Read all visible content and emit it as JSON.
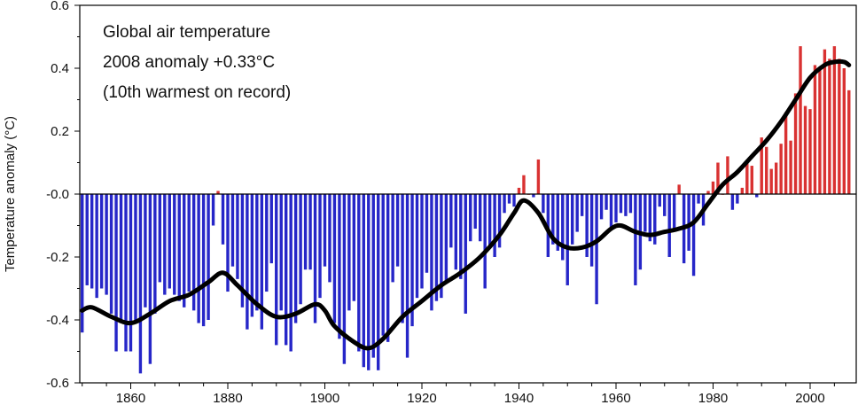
{
  "chart_data": {
    "type": "bar",
    "ylabel": "Temperature anomaly (°C)",
    "annotations": [
      "Global air temperature",
      "2008 anomaly +0.33°C",
      "(10th warmest on record)"
    ],
    "xlim": [
      1849.5,
      2009.5
    ],
    "ylim": [
      -0.6,
      0.6
    ],
    "x_ticks": [
      1860,
      1880,
      1900,
      1920,
      1940,
      1960,
      1980,
      2000
    ],
    "y_ticks": [
      0.6,
      0.4,
      0.2,
      0.0,
      -0.2,
      -0.4,
      -0.6
    ],
    "y_tick_labels": [
      "0.6",
      "0.4",
      "0.2",
      "-0.0",
      "-0.2",
      "-0.4",
      "-0.6"
    ],
    "grid": false,
    "colors": {
      "positive": "#d93232",
      "negative": "#2626c8",
      "smooth": "#000000"
    },
    "x": [
      1850,
      1851,
      1852,
      1853,
      1854,
      1855,
      1856,
      1857,
      1858,
      1859,
      1860,
      1861,
      1862,
      1863,
      1864,
      1865,
      1866,
      1867,
      1868,
      1869,
      1870,
      1871,
      1872,
      1873,
      1874,
      1875,
      1876,
      1877,
      1878,
      1879,
      1880,
      1881,
      1882,
      1883,
      1884,
      1885,
      1886,
      1887,
      1888,
      1889,
      1890,
      1891,
      1892,
      1893,
      1894,
      1895,
      1896,
      1897,
      1898,
      1899,
      1900,
      1901,
      1902,
      1903,
      1904,
      1905,
      1906,
      1907,
      1908,
      1909,
      1910,
      1911,
      1912,
      1913,
      1914,
      1915,
      1916,
      1917,
      1918,
      1919,
      1920,
      1921,
      1922,
      1923,
      1924,
      1925,
      1926,
      1927,
      1928,
      1929,
      1930,
      1931,
      1932,
      1933,
      1934,
      1935,
      1936,
      1937,
      1938,
      1939,
      1940,
      1941,
      1942,
      1943,
      1944,
      1945,
      1946,
      1947,
      1948,
      1949,
      1950,
      1951,
      1952,
      1953,
      1954,
      1955,
      1956,
      1957,
      1958,
      1959,
      1960,
      1961,
      1962,
      1963,
      1964,
      1965,
      1966,
      1967,
      1968,
      1969,
      1970,
      1971,
      1972,
      1973,
      1974,
      1975,
      1976,
      1977,
      1978,
      1979,
      1980,
      1981,
      1982,
      1983,
      1984,
      1985,
      1986,
      1987,
      1988,
      1989,
      1990,
      1991,
      1992,
      1993,
      1994,
      1995,
      1996,
      1997,
      1998,
      1999,
      2000,
      2001,
      2002,
      2003,
      2004,
      2005,
      2006,
      2007,
      2008
    ],
    "values": [
      -0.44,
      -0.29,
      -0.3,
      -0.33,
      -0.3,
      -0.32,
      -0.38,
      -0.5,
      -0.41,
      -0.5,
      -0.5,
      -0.41,
      -0.57,
      -0.36,
      -0.54,
      -0.38,
      -0.28,
      -0.32,
      -0.3,
      -0.32,
      -0.34,
      -0.36,
      -0.31,
      -0.37,
      -0.41,
      -0.42,
      -0.4,
      -0.1,
      0.01,
      -0.16,
      -0.31,
      -0.23,
      -0.27,
      -0.36,
      -0.43,
      -0.39,
      -0.37,
      -0.43,
      -0.31,
      -0.22,
      -0.48,
      -0.37,
      -0.48,
      -0.5,
      -0.41,
      -0.35,
      -0.24,
      -0.24,
      -0.41,
      -0.33,
      -0.23,
      -0.28,
      -0.41,
      -0.46,
      -0.54,
      -0.37,
      -0.34,
      -0.5,
      -0.55,
      -0.56,
      -0.52,
      -0.56,
      -0.45,
      -0.47,
      -0.28,
      -0.23,
      -0.41,
      -0.52,
      -0.42,
      -0.33,
      -0.3,
      -0.25,
      -0.37,
      -0.34,
      -0.33,
      -0.28,
      -0.17,
      -0.24,
      -0.27,
      -0.38,
      -0.15,
      -0.11,
      -0.15,
      -0.3,
      -0.17,
      -0.2,
      -0.17,
      -0.06,
      -0.03,
      -0.04,
      0.02,
      0.06,
      0.0,
      -0.01,
      0.11,
      -0.06,
      -0.2,
      -0.16,
      -0.18,
      -0.21,
      -0.29,
      -0.16,
      -0.12,
      -0.07,
      -0.2,
      -0.23,
      -0.35,
      -0.08,
      -0.05,
      -0.11,
      -0.09,
      -0.06,
      -0.07,
      -0.06,
      -0.29,
      -0.24,
      -0.12,
      -0.15,
      -0.16,
      -0.04,
      -0.07,
      -0.2,
      -0.11,
      0.03,
      -0.22,
      -0.18,
      -0.26,
      -0.03,
      -0.1,
      0.01,
      0.04,
      0.1,
      0.0,
      0.12,
      -0.05,
      -0.03,
      0.02,
      0.1,
      0.09,
      -0.01,
      0.18,
      0.15,
      0.08,
      0.1,
      0.16,
      0.26,
      0.17,
      0.32,
      0.47,
      0.28,
      0.27,
      0.41,
      0.4,
      0.46,
      0.43,
      0.47,
      0.43,
      0.4,
      0.33
    ],
    "smooth_x": [
      1850,
      1852,
      1856,
      1860,
      1864,
      1868,
      1872,
      1876,
      1879,
      1882,
      1886,
      1890,
      1894,
      1898,
      1900,
      1902,
      1906,
      1909,
      1912,
      1916,
      1920,
      1924,
      1928,
      1932,
      1936,
      1939,
      1941,
      1944,
      1947,
      1950,
      1953,
      1956,
      1959,
      1961,
      1964,
      1967,
      1970,
      1973,
      1976,
      1979,
      1982,
      1985,
      1988,
      1991,
      1994,
      1997,
      2000,
      2003,
      2005,
      2007,
      2008
    ],
    "smooth_y": [
      -0.37,
      -0.36,
      -0.39,
      -0.41,
      -0.38,
      -0.34,
      -0.32,
      -0.28,
      -0.25,
      -0.29,
      -0.35,
      -0.39,
      -0.38,
      -0.35,
      -0.37,
      -0.42,
      -0.47,
      -0.49,
      -0.46,
      -0.39,
      -0.34,
      -0.29,
      -0.25,
      -0.2,
      -0.13,
      -0.06,
      -0.02,
      -0.06,
      -0.14,
      -0.17,
      -0.17,
      -0.15,
      -0.11,
      -0.1,
      -0.12,
      -0.13,
      -0.12,
      -0.11,
      -0.09,
      -0.03,
      0.03,
      0.07,
      0.12,
      0.17,
      0.23,
      0.3,
      0.37,
      0.41,
      0.42,
      0.42,
      0.41
    ]
  }
}
